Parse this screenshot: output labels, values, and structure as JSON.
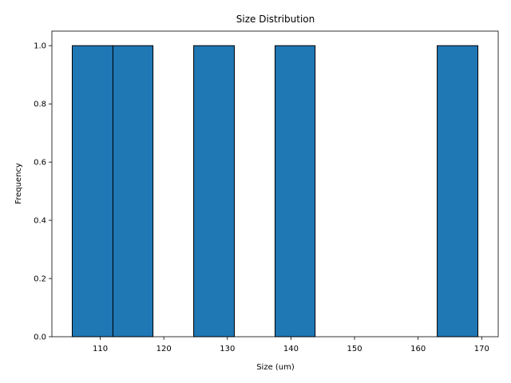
{
  "chart_data": {
    "type": "bar",
    "title": "Size Distribution",
    "xlabel": "Size (um)",
    "ylabel": "Frequency",
    "bins": [
      {
        "x0": 105.6,
        "x1": 112.0,
        "count": 1
      },
      {
        "x0": 112.0,
        "x1": 118.3,
        "count": 1
      },
      {
        "x0": 118.3,
        "x1": 124.7,
        "count": 0
      },
      {
        "x0": 124.7,
        "x1": 131.1,
        "count": 1
      },
      {
        "x0": 131.1,
        "x1": 137.5,
        "count": 0
      },
      {
        "x0": 137.5,
        "x1": 143.8,
        "count": 1
      },
      {
        "x0": 143.8,
        "x1": 150.2,
        "count": 0
      },
      {
        "x0": 150.2,
        "x1": 156.6,
        "count": 0
      },
      {
        "x0": 156.6,
        "x1": 163.0,
        "count": 0
      },
      {
        "x0": 163.0,
        "x1": 169.4,
        "count": 1
      }
    ],
    "xlim": [
      102.4,
      172.6
    ],
    "ylim": [
      0,
      1.05
    ],
    "xticks": [
      110,
      120,
      130,
      140,
      150,
      160,
      170
    ],
    "yticks": [
      0.0,
      0.2,
      0.4,
      0.6,
      0.8,
      1.0
    ],
    "bar_color": "#1f77b4",
    "edge_color": "#000000",
    "grid": false,
    "legend": "none"
  }
}
